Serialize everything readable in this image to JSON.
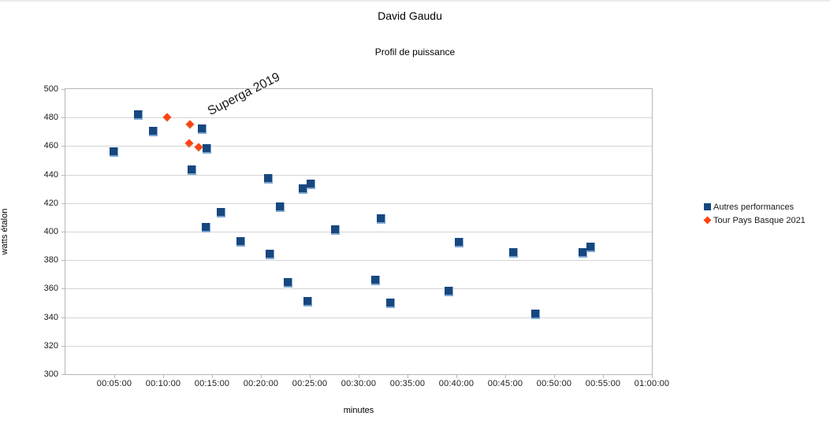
{
  "page": {
    "title": "David Gaudu",
    "subtitle": "Profil de puissance"
  },
  "colors": {
    "series_blue": "#17477f",
    "series_orange": "#ff420e",
    "gridline": "#d4d4d4",
    "axis": "#b6b6b6",
    "text": "#1a1a1a"
  },
  "chart_data": {
    "type": "scatter",
    "title": "David Gaudu",
    "subtitle": "Profil de puissance",
    "xlabel": "minutes",
    "ylabel": "watts étalon",
    "xlim_minutes": [
      0,
      60
    ],
    "ylim": [
      300,
      500
    ],
    "grid": "horizontal",
    "legend_position": "right",
    "x_tick_labels": [
      "00:05:00",
      "00:10:00",
      "00:15:00",
      "00:20:00",
      "00:25:00",
      "00:30:00",
      "00:35:00",
      "00:40:00",
      "00:45:00",
      "00:50:00",
      "00:55:00",
      "01:00:00"
    ],
    "y_ticks": [
      500,
      480,
      460,
      440,
      420,
      400,
      380,
      360,
      340,
      320,
      300
    ],
    "annotation": {
      "text": "Superga 2019",
      "time": "00:15:00",
      "watts": 479,
      "angle_deg": -27
    },
    "series": [
      {
        "name": "Autres performances",
        "marker": "square",
        "color": "#17477f",
        "points": [
          [
            "00:05:00",
            456
          ],
          [
            "00:07:30",
            482
          ],
          [
            "00:09:00",
            470
          ],
          [
            "00:13:00",
            443
          ],
          [
            "00:14:00",
            472
          ],
          [
            "00:14:25",
            403
          ],
          [
            "00:14:30",
            458
          ],
          [
            "00:16:00",
            413
          ],
          [
            "00:18:00",
            393
          ],
          [
            "00:20:50",
            437
          ],
          [
            "00:21:00",
            384
          ],
          [
            "00:22:00",
            417
          ],
          [
            "00:22:50",
            364
          ],
          [
            "00:24:20",
            430
          ],
          [
            "00:24:50",
            351
          ],
          [
            "00:25:10",
            433
          ],
          [
            "00:27:40",
            401
          ],
          [
            "00:31:45",
            366
          ],
          [
            "00:32:20",
            409
          ],
          [
            "00:33:20",
            350
          ],
          [
            "00:39:15",
            358
          ],
          [
            "00:40:20",
            392
          ],
          [
            "00:45:55",
            385
          ],
          [
            "00:48:10",
            342
          ],
          [
            "00:53:00",
            385
          ],
          [
            "00:53:45",
            389
          ]
        ]
      },
      {
        "name": "Tour Pays Basque 2021",
        "marker": "diamond",
        "color": "#ff420e",
        "points": [
          [
            "00:10:25",
            480
          ],
          [
            "00:12:40",
            462
          ],
          [
            "00:12:45",
            475
          ],
          [
            "00:13:40",
            459
          ]
        ]
      }
    ]
  }
}
